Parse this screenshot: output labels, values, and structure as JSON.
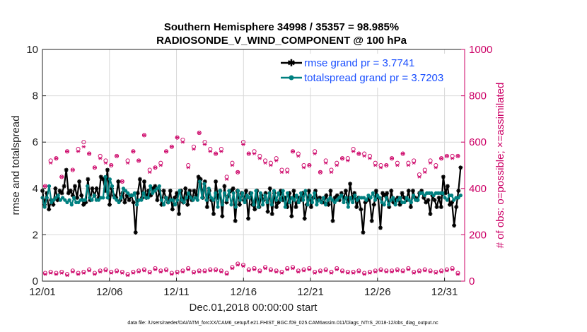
{
  "chart_data": {
    "type": "line",
    "title_line1": "Southern Hemisphere 34998 / 35357 = 98.985%",
    "title_line2": "RADIOSONDE_V_WIND_COMPONENT @ 100 hPa",
    "xlabel": "Dec.01,2018 00:00:00 start",
    "ylabel_left": "rmse and totalspread",
    "ylabel_right": "# of obs: o=possible; ×=assimilated",
    "footnote": "data file: /Users/raeder/DAI/ATM_forcXX/CAM6_setup/f.e21.FHIST_BGC.f09_025.CAM6assim.011/Diags_NTrS_2018-12/obs_diag_output.nc",
    "xlim": [
      0,
      31.5
    ],
    "ylim_left": [
      0,
      10
    ],
    "ylim_right": [
      0,
      1000
    ],
    "x_ticks": [
      {
        "value": 0,
        "label": "12/01"
      },
      {
        "value": 5,
        "label": "12/06"
      },
      {
        "value": 10,
        "label": "12/11"
      },
      {
        "value": 15,
        "label": "12/16"
      },
      {
        "value": 20,
        "label": "12/21"
      },
      {
        "value": 25,
        "label": "12/26"
      },
      {
        "value": 30,
        "label": "12/31"
      }
    ],
    "y_ticks_left": [
      "0",
      "2",
      "4",
      "6",
      "8",
      "10"
    ],
    "y_ticks_right": [
      "0",
      "200",
      "400",
      "600",
      "800",
      "1000"
    ],
    "colors": {
      "rmse": "#000000",
      "spread": "#008080",
      "obs": "#cc0066",
      "legend_text": "#1a4fff"
    },
    "legend": [
      "rmse grand pr = 3.7741",
      "totalspread grand pr = 3.7203"
    ],
    "series": [
      {
        "name": "rmse grand pr = 3.7741",
        "values": [
          3.9,
          3.3,
          3.8,
          3.1,
          3.5,
          3.3,
          4.0,
          3.5,
          3.9,
          3.8,
          4.1,
          4.8,
          3.8,
          3.9,
          3.7,
          4.1,
          3.6,
          4.3,
          3.7,
          3.3,
          3.4,
          4.4,
          3.5,
          4.0,
          3.7,
          4.0,
          3.6,
          4.5,
          4.4,
          3.9,
          4.8,
          3.3,
          4.0,
          3.7,
          3.6,
          4.3,
          3.5,
          3.8,
          3.4,
          3.7,
          3.5,
          3.7,
          3.4,
          2.1,
          3.8,
          4.4,
          3.6,
          4.3,
          3.6,
          3.9,
          3.7,
          4.0,
          4.1,
          3.5,
          3.9,
          3.3,
          3.9,
          3.6,
          3.4,
          3.9,
          3.1,
          3.6,
          3.8,
          2.9,
          3.9,
          3.4,
          4.0,
          3.3,
          3.9,
          3.5,
          3.9,
          3.7,
          4.5,
          4.4,
          3.6,
          4.3,
          3.2,
          3.9,
          3.5,
          2.9,
          4.3,
          3.6,
          3.9,
          2.8,
          4.1,
          3.4,
          3.7,
          3.9,
          4.0,
          2.6,
          3.9,
          3.3,
          3.8,
          3.5,
          3.9,
          2.7,
          3.8,
          3.3,
          3.1,
          3.9,
          3.2,
          3.7,
          3.5,
          3.8,
          3.0,
          4.0,
          2.9,
          3.8,
          3.2,
          3.4,
          3.9,
          3.5,
          3.6,
          3.2,
          3.8,
          2.8,
          3.9,
          3.2,
          3.6,
          3.5,
          3.8,
          2.7,
          3.3,
          3.9,
          3.2,
          3.6,
          3.9,
          3.5,
          3.6,
          3.4,
          3.4,
          3.7,
          3.3,
          3.9,
          2.6,
          3.6,
          3.7,
          3.5,
          3.8,
          3.6,
          3.9,
          3.4,
          4.2,
          3.6,
          3.8,
          3.2,
          3.6,
          3.1,
          2.1,
          3.4,
          3.5,
          3.6,
          2.6,
          3.3,
          3.9,
          3.6,
          2.3,
          3.8,
          3.7,
          3.8,
          3.2,
          3.9,
          3.4,
          3.5,
          3.6,
          3.3,
          3.8,
          3.6,
          3.5,
          3.9,
          3.2,
          3.9,
          3.6,
          3.5,
          3.8,
          3.9,
          3.6,
          3.4,
          3.5,
          2.9,
          3.7,
          3.5,
          3.2,
          3.6,
          3.2,
          4.5,
          3.8,
          4.1,
          3.3,
          3.4,
          2.4,
          3.2,
          3.9,
          4.9
        ]
      },
      {
        "name": "totalspread grand pr = 3.7203",
        "values": [
          3.6,
          3.2,
          3.6,
          4.1,
          3.4,
          3.5,
          3.6,
          3.7,
          3.5,
          3.6,
          3.5,
          3.4,
          3.5,
          3.3,
          3.6,
          3.4,
          3.4,
          3.5,
          3.5,
          3.5,
          4.1,
          3.6,
          3.5,
          3.7,
          3.5,
          3.5,
          3.6,
          3.6,
          4.5,
          3.6,
          4.4,
          4.1,
          3.6,
          3.5,
          3.4,
          3.6,
          4.0,
          3.9,
          3.8,
          3.7,
          3.7,
          3.8,
          3.3,
          3.5,
          3.5,
          3.8,
          3.6,
          3.6,
          4.1,
          3.8,
          3.9,
          4.0,
          4.1,
          3.5,
          3.3,
          3.6,
          3.4,
          3.5,
          3.5,
          3.3,
          3.5,
          3.9,
          3.5,
          3.4,
          3.6,
          3.8,
          3.6,
          3.5,
          3.6,
          3.5,
          4.3,
          3.6,
          4.2,
          3.5,
          4.0,
          3.6,
          3.5,
          3.8,
          3.2,
          3.9,
          3.3,
          3.8,
          3.5,
          3.9,
          3.3,
          3.8,
          3.2,
          3.9,
          3.5,
          3.8,
          3.4,
          3.7,
          3.6,
          3.8,
          3.3,
          3.9,
          3.2,
          3.8,
          3.3,
          3.7,
          3.4,
          3.8,
          3.3,
          3.9,
          3.5,
          3.8,
          3.5,
          3.9,
          3.2,
          3.8,
          3.4,
          3.6,
          3.5,
          3.7,
          3.4,
          3.8,
          3.5,
          3.9,
          3.3,
          3.7,
          3.4,
          3.8,
          3.3,
          3.5,
          3.4,
          3.6,
          3.3,
          3.5,
          3.6,
          3.5,
          3.4,
          3.5,
          3.6,
          3.7,
          3.4,
          3.6,
          3.2,
          3.6,
          3.4,
          3.7,
          3.5,
          3.6,
          3.6,
          3.6,
          3.5,
          3.7,
          3.6,
          3.8,
          3.5,
          3.7,
          3.6,
          3.4,
          3.3,
          3.6,
          3.3,
          3.5,
          3.6,
          3.3,
          3.5,
          3.6,
          3.4,
          3.4,
          3.6,
          3.5,
          3.4,
          3.7,
          3.5,
          3.5,
          3.8,
          3.8,
          3.7,
          3.8,
          3.8,
          3.8,
          3.7,
          3.8,
          3.8,
          3.8,
          3.8,
          3.6,
          3.5,
          3.7,
          3.7,
          3.5,
          3.6,
          3.6,
          3.7
        ]
      }
    ],
    "obs_high_possible": [
      410,
      520,
      530,
      450,
      560,
      480,
      570,
      600,
      550,
      490,
      540,
      520,
      500,
      540,
      430,
      520,
      560,
      520,
      630,
      480,
      490,
      510,
      560,
      580,
      620,
      610,
      500,
      580,
      640,
      600,
      570,
      550,
      570,
      450,
      510,
      470,
      600,
      550,
      560,
      540,
      520,
      510,
      530,
      480,
      480,
      560,
      550,
      500,
      500,
      560,
      470,
      520,
      480,
      510,
      530,
      530,
      570,
      550,
      550,
      540,
      510,
      500,
      500,
      530,
      510,
      550,
      510,
      520,
      460,
      480,
      520,
      500,
      530,
      540,
      540,
      540
    ],
    "obs_high_assimilated": [
      410,
      510,
      530,
      450,
      560,
      480,
      560,
      580,
      550,
      490,
      530,
      510,
      500,
      540,
      430,
      510,
      560,
      520,
      630,
      470,
      490,
      500,
      560,
      580,
      620,
      600,
      490,
      570,
      640,
      590,
      560,
      550,
      560,
      440,
      500,
      470,
      590,
      550,
      550,
      530,
      510,
      500,
      520,
      470,
      470,
      560,
      540,
      490,
      500,
      550,
      470,
      510,
      470,
      500,
      530,
      520,
      560,
      550,
      540,
      530,
      500,
      490,
      500,
      530,
      500,
      550,
      500,
      510,
      450,
      470,
      510,
      490,
      530,
      540,
      530,
      540
    ],
    "obs_low_possible": [
      35,
      40,
      35,
      40,
      30,
      45,
      35,
      40,
      50,
      35,
      45,
      50,
      40,
      45,
      40,
      30,
      40,
      45,
      50,
      40,
      55,
      45,
      50,
      35,
      40,
      45,
      55,
      40,
      45,
      45,
      50,
      50,
      45,
      35,
      60,
      75,
      70,
      50,
      55,
      45,
      60,
      50,
      45,
      40,
      55,
      60,
      45,
      50,
      55,
      40,
      45,
      50,
      40,
      55,
      45,
      40,
      40,
      45,
      35,
      40,
      45,
      50,
      45,
      45,
      50,
      45,
      55,
      40,
      45,
      50,
      45,
      40,
      45,
      50,
      55,
      35
    ],
    "obs_low_assimilated": [
      30,
      35,
      30,
      35,
      25,
      40,
      30,
      35,
      45,
      30,
      40,
      45,
      35,
      40,
      35,
      25,
      35,
      40,
      45,
      35,
      50,
      40,
      45,
      30,
      35,
      40,
      50,
      35,
      40,
      40,
      45,
      45,
      40,
      30,
      55,
      70,
      65,
      45,
      50,
      40,
      55,
      45,
      40,
      35,
      50,
      55,
      40,
      45,
      50,
      35,
      40,
      45,
      35,
      50,
      40,
      35,
      35,
      40,
      30,
      35,
      40,
      45,
      40,
      40,
      45,
      40,
      50,
      35,
      40,
      45,
      40,
      35,
      40,
      45,
      50,
      30
    ]
  }
}
